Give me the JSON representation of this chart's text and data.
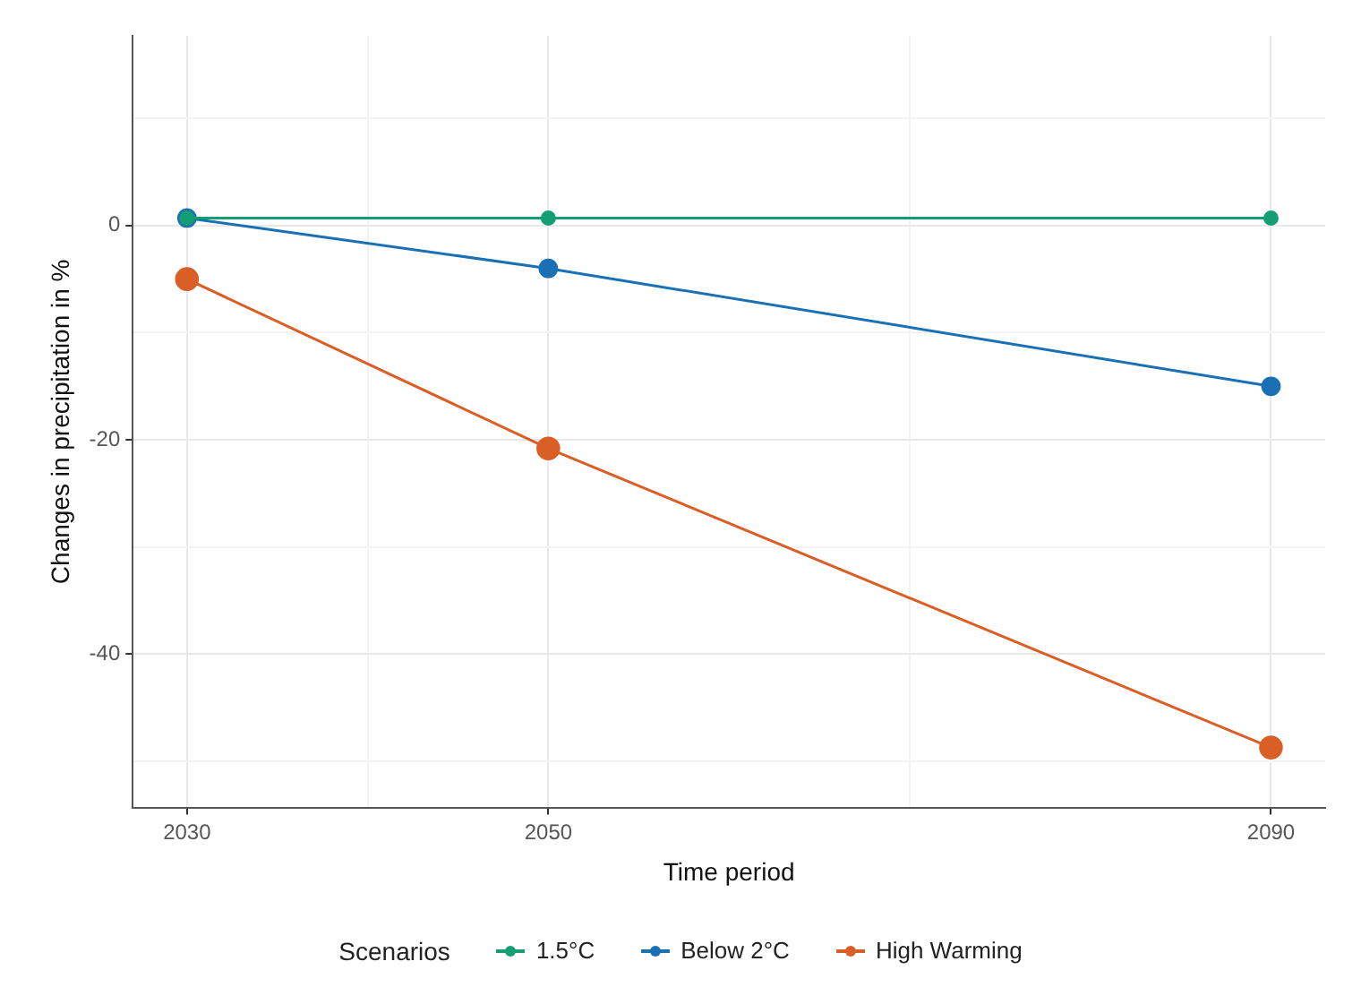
{
  "chart_data": {
    "type": "line",
    "xlabel": "Time period",
    "ylabel": "Changes in precipitation in %",
    "legend_title": "Scenarios",
    "legend": "bottom",
    "grid": true,
    "marker": "circle",
    "line_style": "solid",
    "x": [
      2030,
      2050,
      2090
    ],
    "xlim": [
      2027,
      2093
    ],
    "xticks": [
      2030,
      {
        "value": 2040,
        "label": null
      },
      2050,
      {
        "value": 2070,
        "label": null
      },
      2090
    ],
    "ylim": [
      -54.3,
      17.7
    ],
    "yticks": [
      {
        "value": -50,
        "label": null
      },
      -40,
      {
        "value": -30,
        "label": null
      },
      -20,
      {
        "value": -10,
        "label": null
      },
      0,
      {
        "value": 10,
        "label": null
      }
    ],
    "series": [
      {
        "name": "1.5°C",
        "color": "#159e74",
        "values": [
          0.7,
          0.7,
          0.7
        ]
      },
      {
        "name": "Below 2°C",
        "color": "#1a70b5",
        "values": [
          0.7,
          -4,
          -15
        ]
      },
      {
        "name": "High Warming",
        "color": "#d95f26",
        "values": [
          -5,
          -20.8,
          -48.7
        ]
      }
    ]
  }
}
